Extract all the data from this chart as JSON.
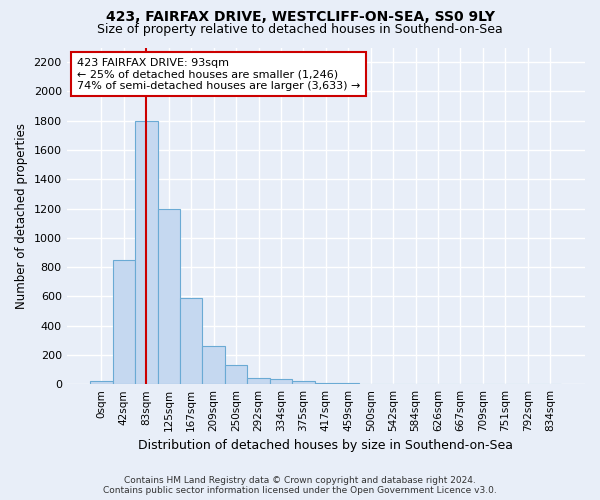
{
  "title": "423, FAIRFAX DRIVE, WESTCLIFF-ON-SEA, SS0 9LY",
  "subtitle": "Size of property relative to detached houses in Southend-on-Sea",
  "xlabel": "Distribution of detached houses by size in Southend-on-Sea",
  "ylabel": "Number of detached properties",
  "footer_line1": "Contains HM Land Registry data © Crown copyright and database right 2024.",
  "footer_line2": "Contains public sector information licensed under the Open Government Licence v3.0.",
  "bar_labels": [
    "0sqm",
    "42sqm",
    "83sqm",
    "125sqm",
    "167sqm",
    "209sqm",
    "250sqm",
    "292sqm",
    "334sqm",
    "375sqm",
    "417sqm",
    "459sqm",
    "500sqm",
    "542sqm",
    "584sqm",
    "626sqm",
    "667sqm",
    "709sqm",
    "751sqm",
    "792sqm",
    "834sqm"
  ],
  "bar_values": [
    25,
    850,
    1800,
    1200,
    590,
    260,
    130,
    45,
    35,
    20,
    10,
    5,
    0,
    0,
    0,
    0,
    0,
    0,
    0,
    0,
    0
  ],
  "bar_color": "#c5d8f0",
  "bar_edgecolor": "#6aaad4",
  "ylim": [
    0,
    2300
  ],
  "yticks": [
    0,
    200,
    400,
    600,
    800,
    1000,
    1200,
    1400,
    1600,
    1800,
    2000,
    2200
  ],
  "vline_x": 2.0,
  "vline_color": "#cc0000",
  "annotation_text": "423 FAIRFAX DRIVE: 93sqm\n← 25% of detached houses are smaller (1,246)\n74% of semi-detached houses are larger (3,633) →",
  "annotation_box_color": "#ffffff",
  "annotation_box_edgecolor": "#cc0000",
  "bg_color": "#e8eef8",
  "plot_bg_color": "#e8eef8",
  "grid_color": "#ffffff",
  "title_fontsize": 10,
  "subtitle_fontsize": 9
}
